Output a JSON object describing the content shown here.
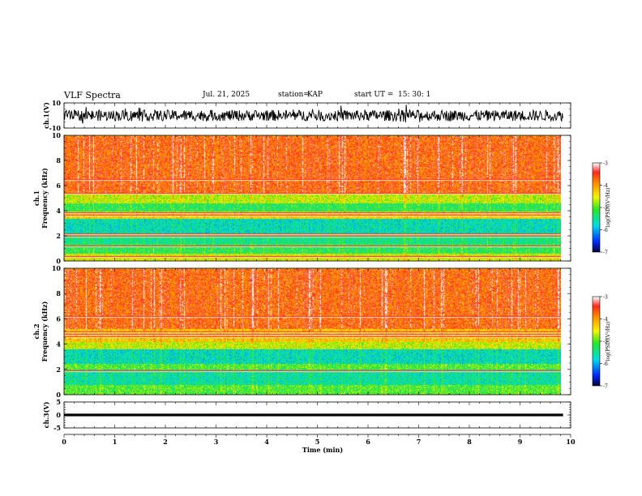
{
  "header": {
    "title": "VLF Spectra",
    "date": "Jul. 21, 2025",
    "station_label": "station=",
    "station": "KAP",
    "start_label": "start UT =",
    "start_time": "15: 30: 1"
  },
  "colors": {
    "red": "#ff2a1e",
    "orange": "#ff8a00",
    "yellow": "#f5f500",
    "green": "#2ee82e",
    "cyan": "#00e6e6",
    "blue": "#0050ff",
    "navy": "#000030",
    "trace": "#000000"
  },
  "chart_data": [
    {
      "type": "line",
      "name": "ch.1 voltage",
      "ylabel": "ch.1(V)",
      "ylim": [
        -10,
        10
      ],
      "yticks": [
        "10",
        "-10"
      ],
      "xlim": [
        0,
        10
      ],
      "trace_mean": 0,
      "trace_amplitude": 4
    },
    {
      "type": "heatmap",
      "name": "ch.1 spectrogram",
      "ylabel": "ch.1",
      "ylabel2": "Frequency (kHz)",
      "ylim": [
        0,
        10
      ],
      "yticks": [
        "0",
        "2",
        "4",
        "6",
        "8",
        "10"
      ],
      "xlim": [
        0,
        9.8
      ],
      "colorbar": {
        "label": "log(PSD)(V²/Hz)",
        "range": [
          -7,
          -3
        ],
        "ticks": [
          "-3",
          "-4",
          "-5",
          "-6",
          "-7"
        ]
      },
      "bands": [
        {
          "from": 0,
          "to": 0.6,
          "level": -4.5
        },
        {
          "from": 0.6,
          "to": 1.4,
          "level": -5.2
        },
        {
          "from": 1.4,
          "to": 2.2,
          "level": -5.4
        },
        {
          "from": 2.2,
          "to": 3.4,
          "level": -5.6
        },
        {
          "from": 3.4,
          "to": 4.0,
          "level": -4.3
        },
        {
          "from": 4.0,
          "to": 4.6,
          "level": -5.2
        },
        {
          "from": 4.6,
          "to": 5.4,
          "level": -4.6
        },
        {
          "from": 5.4,
          "to": 10,
          "level": -3.6
        }
      ],
      "lines_khz": [
        0.4,
        1.2,
        2.0,
        2.2,
        3.7,
        3.9,
        5.4,
        6.5
      ]
    },
    {
      "type": "heatmap",
      "name": "ch.2 spectrogram",
      "ylabel": "ch.2",
      "ylabel2": "Frequency (kHz)",
      "ylim": [
        0,
        10
      ],
      "yticks": [
        "0",
        "2",
        "4",
        "6",
        "8",
        "10"
      ],
      "xlim": [
        0,
        9.8
      ],
      "colorbar": {
        "label": "log(PSD)(V²/Hz)",
        "range": [
          -7,
          -3
        ],
        "ticks": [
          "-3",
          "-4",
          "-5",
          "-6",
          "-7"
        ]
      },
      "bands": [
        {
          "from": 0,
          "to": 0.8,
          "level": -5.0
        },
        {
          "from": 0.8,
          "to": 2.0,
          "level": -5.5
        },
        {
          "from": 2.0,
          "to": 2.5,
          "level": -5.0
        },
        {
          "from": 2.5,
          "to": 3.6,
          "level": -5.6
        },
        {
          "from": 3.6,
          "to": 4.2,
          "level": -4.6
        },
        {
          "from": 4.2,
          "to": 5.2,
          "level": -4.2
        },
        {
          "from": 5.2,
          "to": 10,
          "level": -3.6
        }
      ],
      "lines_khz": [
        1.9,
        4.6,
        4.8,
        5.0,
        6.2
      ]
    },
    {
      "type": "line",
      "name": "ch.3 voltage",
      "ylabel": "ch.3(V)",
      "ylim": [
        -5,
        5
      ],
      "yticks": [
        "5",
        "0",
        "-5"
      ],
      "xlim": [
        0,
        10
      ],
      "trace_mean": 0,
      "trace_amplitude": 0.5
    },
    {
      "type": "axis",
      "name": "time axis",
      "xlabel": "Time (min)",
      "xlim": [
        0,
        10
      ],
      "xticks": [
        "0",
        "1",
        "2",
        "3",
        "4",
        "5",
        "6",
        "7",
        "8",
        "9",
        "10"
      ]
    }
  ]
}
